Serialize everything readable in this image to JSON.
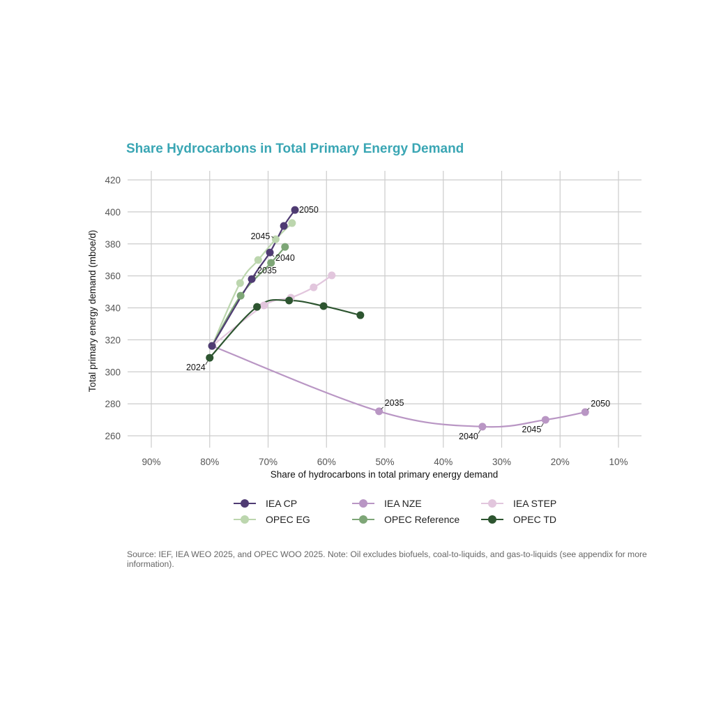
{
  "chart_data": {
    "type": "line",
    "title": "Share Hydrocarbons in Total Primary Energy Demand",
    "xlabel": "Share of hydrocarbons in total primary energy demand",
    "ylabel": "Total primary energy demand (mboe/d)",
    "x_unit": "%",
    "x_reversed": true,
    "xlim": [
      92.5,
      6
    ],
    "ylim": [
      255,
      425
    ],
    "x_ticks": [
      90,
      80,
      70,
      60,
      50,
      40,
      30,
      20,
      10
    ],
    "x_tick_labels": [
      "90%",
      "80%",
      "70%",
      "60%",
      "50%",
      "40%",
      "30%",
      "20%",
      "10%"
    ],
    "y_ticks": [
      260,
      280,
      300,
      320,
      340,
      360,
      380,
      400,
      420
    ],
    "y_tick_labels": [
      "260",
      "280",
      "300",
      "320",
      "340",
      "360",
      "380",
      "400",
      "420"
    ],
    "grid": true,
    "legend_position": "bottom",
    "series": [
      {
        "name": "IEA CP",
        "color": "#4f3b73",
        "points": [
          {
            "x": 79.6,
            "y": 316.2
          },
          {
            "x": 72.8,
            "y": 358.0
          },
          {
            "x": 69.7,
            "y": 374.6
          },
          {
            "x": 67.3,
            "y": 391.2
          },
          {
            "x": 65.4,
            "y": 401.2
          }
        ]
      },
      {
        "name": "IEA NZE",
        "color": "#b996c4",
        "points": [
          {
            "x": 79.6,
            "y": 316.2
          },
          {
            "x": 51.0,
            "y": 275.3
          },
          {
            "x": 33.3,
            "y": 265.7
          },
          {
            "x": 22.5,
            "y": 270.0
          },
          {
            "x": 15.7,
            "y": 274.8
          }
        ]
      },
      {
        "name": "IEA STEP",
        "color": "#e2c6dd",
        "points": [
          {
            "x": 79.6,
            "y": 316.2
          },
          {
            "x": 70.7,
            "y": 341.5
          },
          {
            "x": 66.1,
            "y": 346.3
          },
          {
            "x": 62.2,
            "y": 352.8
          },
          {
            "x": 59.1,
            "y": 360.3
          }
        ]
      },
      {
        "name": "OPEC EG",
        "color": "#bcd6ae",
        "points": [
          {
            "x": 79.6,
            "y": 316.2
          },
          {
            "x": 74.8,
            "y": 355.5
          },
          {
            "x": 71.7,
            "y": 369.9
          },
          {
            "x": 68.7,
            "y": 382.9
          },
          {
            "x": 65.9,
            "y": 393.0
          }
        ]
      },
      {
        "name": "OPEC Reference",
        "color": "#7ea677",
        "points": [
          {
            "x": 79.6,
            "y": 316.2
          },
          {
            "x": 74.7,
            "y": 347.6
          },
          {
            "x": 69.5,
            "y": 368.1
          },
          {
            "x": 67.1,
            "y": 378.1
          }
        ]
      },
      {
        "name": "OPEC TD",
        "color": "#2d5530",
        "points": [
          {
            "x": 80.0,
            "y": 308.8
          },
          {
            "x": 71.9,
            "y": 340.6
          },
          {
            "x": 66.4,
            "y": 344.6
          },
          {
            "x": 60.5,
            "y": 341.1
          },
          {
            "x": 54.2,
            "y": 335.4
          }
        ]
      }
    ],
    "annotations": [
      {
        "text": "2024",
        "x": 80.0,
        "y": 308.8,
        "pos": "below-left"
      },
      {
        "text": "2035",
        "x": 72.8,
        "y": 358.0,
        "pos": "above-right"
      },
      {
        "text": "2040",
        "x": 69.7,
        "y": 374.6,
        "pos": "below-right"
      },
      {
        "text": "2045",
        "x": 68.7,
        "y": 382.9,
        "pos": "left"
      },
      {
        "text": "2050",
        "x": 65.4,
        "y": 401.2,
        "pos": "right"
      },
      {
        "text": "2035",
        "x": 51.0,
        "y": 275.3,
        "pos": "above-right"
      },
      {
        "text": "2040",
        "x": 33.3,
        "y": 265.7,
        "pos": "below-left"
      },
      {
        "text": "2045",
        "x": 22.5,
        "y": 270.0,
        "pos": "below-left"
      },
      {
        "text": "2050",
        "x": 15.7,
        "y": 274.8,
        "pos": "above-right"
      }
    ]
  },
  "legend": {
    "items": [
      {
        "label": "IEA CP",
        "color": "#4f3b73"
      },
      {
        "label": "IEA NZE",
        "color": "#b996c4"
      },
      {
        "label": "IEA STEP",
        "color": "#e2c6dd"
      },
      {
        "label": "OPEC EG",
        "color": "#bcd6ae"
      },
      {
        "label": "OPEC Reference",
        "color": "#7ea677"
      },
      {
        "label": "OPEC TD",
        "color": "#2d5530"
      }
    ]
  },
  "footer": {
    "source_note": "Source: IEF, IEA WEO 2025, and OPEC WOO 2025. Note: Oil excludes biofuels, coal-to-liquids, and gas-to-liquids (see appendix for more information)."
  },
  "colors": {
    "title": "#3aa6b4",
    "grid": "#cccccc"
  }
}
